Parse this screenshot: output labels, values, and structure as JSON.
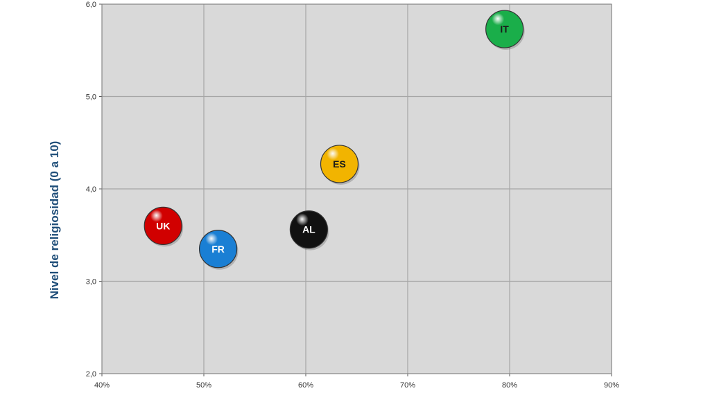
{
  "chart_data": {
    "type": "scatter",
    "title": "",
    "xlabel": "",
    "ylabel": "Nivel de religiosidad (0 a 10)",
    "xlim": [
      0.4,
      0.9
    ],
    "ylim": [
      2.0,
      6.0
    ],
    "x_ticks": [
      "40%",
      "50%",
      "60%",
      "70%",
      "80%",
      "90%"
    ],
    "y_ticks": [
      "2,0",
      "3,0",
      "4,0",
      "5,0",
      "6,0"
    ],
    "grid": true,
    "legend": "none",
    "points": [
      {
        "label": "UK",
        "x": 0.46,
        "y": 3.6,
        "color": "#d10000",
        "text_color": "#ffffff"
      },
      {
        "label": "FR",
        "x": 0.514,
        "y": 3.35,
        "color": "#1a7fd4",
        "text_color": "#ffffff"
      },
      {
        "label": "AL",
        "x": 0.603,
        "y": 3.56,
        "color": "#111111",
        "text_color": "#ffffff"
      },
      {
        "label": "ES",
        "x": 0.633,
        "y": 4.27,
        "color": "#f2b400",
        "text_color": "#1a1a1a"
      },
      {
        "label": "IT",
        "x": 0.795,
        "y": 5.73,
        "color": "#1aae4a",
        "text_color": "#1a1a1a"
      }
    ]
  },
  "colors": {
    "plot_background": "#d9d9d9",
    "grid": "#a6a6a6",
    "axis_title": "#1f4e79"
  }
}
